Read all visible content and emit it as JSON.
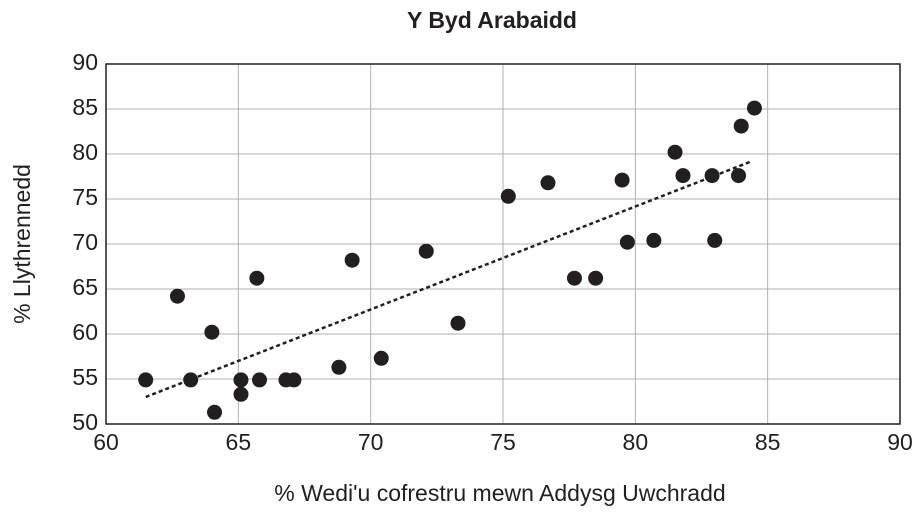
{
  "chart_data": {
    "type": "scatter",
    "title": "Y Byd Arabaidd",
    "x_label": "% Wedi'u cofrestru mewn Addysg Uwchradd",
    "y_label": "% Llythrennedd",
    "color": "#231f20",
    "grid": true,
    "xlim": [
      60,
      90
    ],
    "xticks": [
      60,
      65,
      70,
      75,
      80,
      85,
      90
    ],
    "ylim": [
      50,
      90
    ],
    "yticks": [
      50,
      55,
      60,
      65,
      70,
      75,
      80,
      85,
      90
    ],
    "x": [
      61.5,
      62.7,
      63.2,
      64.0,
      64.1,
      65.1,
      65.1,
      65.7,
      65.8,
      66.8,
      67.1,
      68.8,
      69.3,
      70.4,
      72.1,
      73.3,
      75.2,
      76.7,
      77.7,
      78.5,
      79.5,
      79.7,
      80.7,
      81.5,
      81.8,
      82.9,
      83.0,
      83.9,
      84.0,
      84.5
    ],
    "y": [
      54.9,
      64.2,
      54.9,
      60.2,
      51.3,
      53.3,
      54.9,
      66.2,
      54.9,
      54.9,
      54.9,
      56.3,
      68.2,
      57.3,
      69.2,
      61.2,
      75.3,
      76.8,
      66.2,
      66.2,
      77.1,
      70.2,
      70.4,
      80.2,
      77.6,
      77.6,
      70.4,
      77.6,
      83.1,
      85.1
    ],
    "trendline": {
      "x": [
        61.5,
        84.4
      ],
      "y": [
        53.0,
        79.2
      ]
    }
  }
}
